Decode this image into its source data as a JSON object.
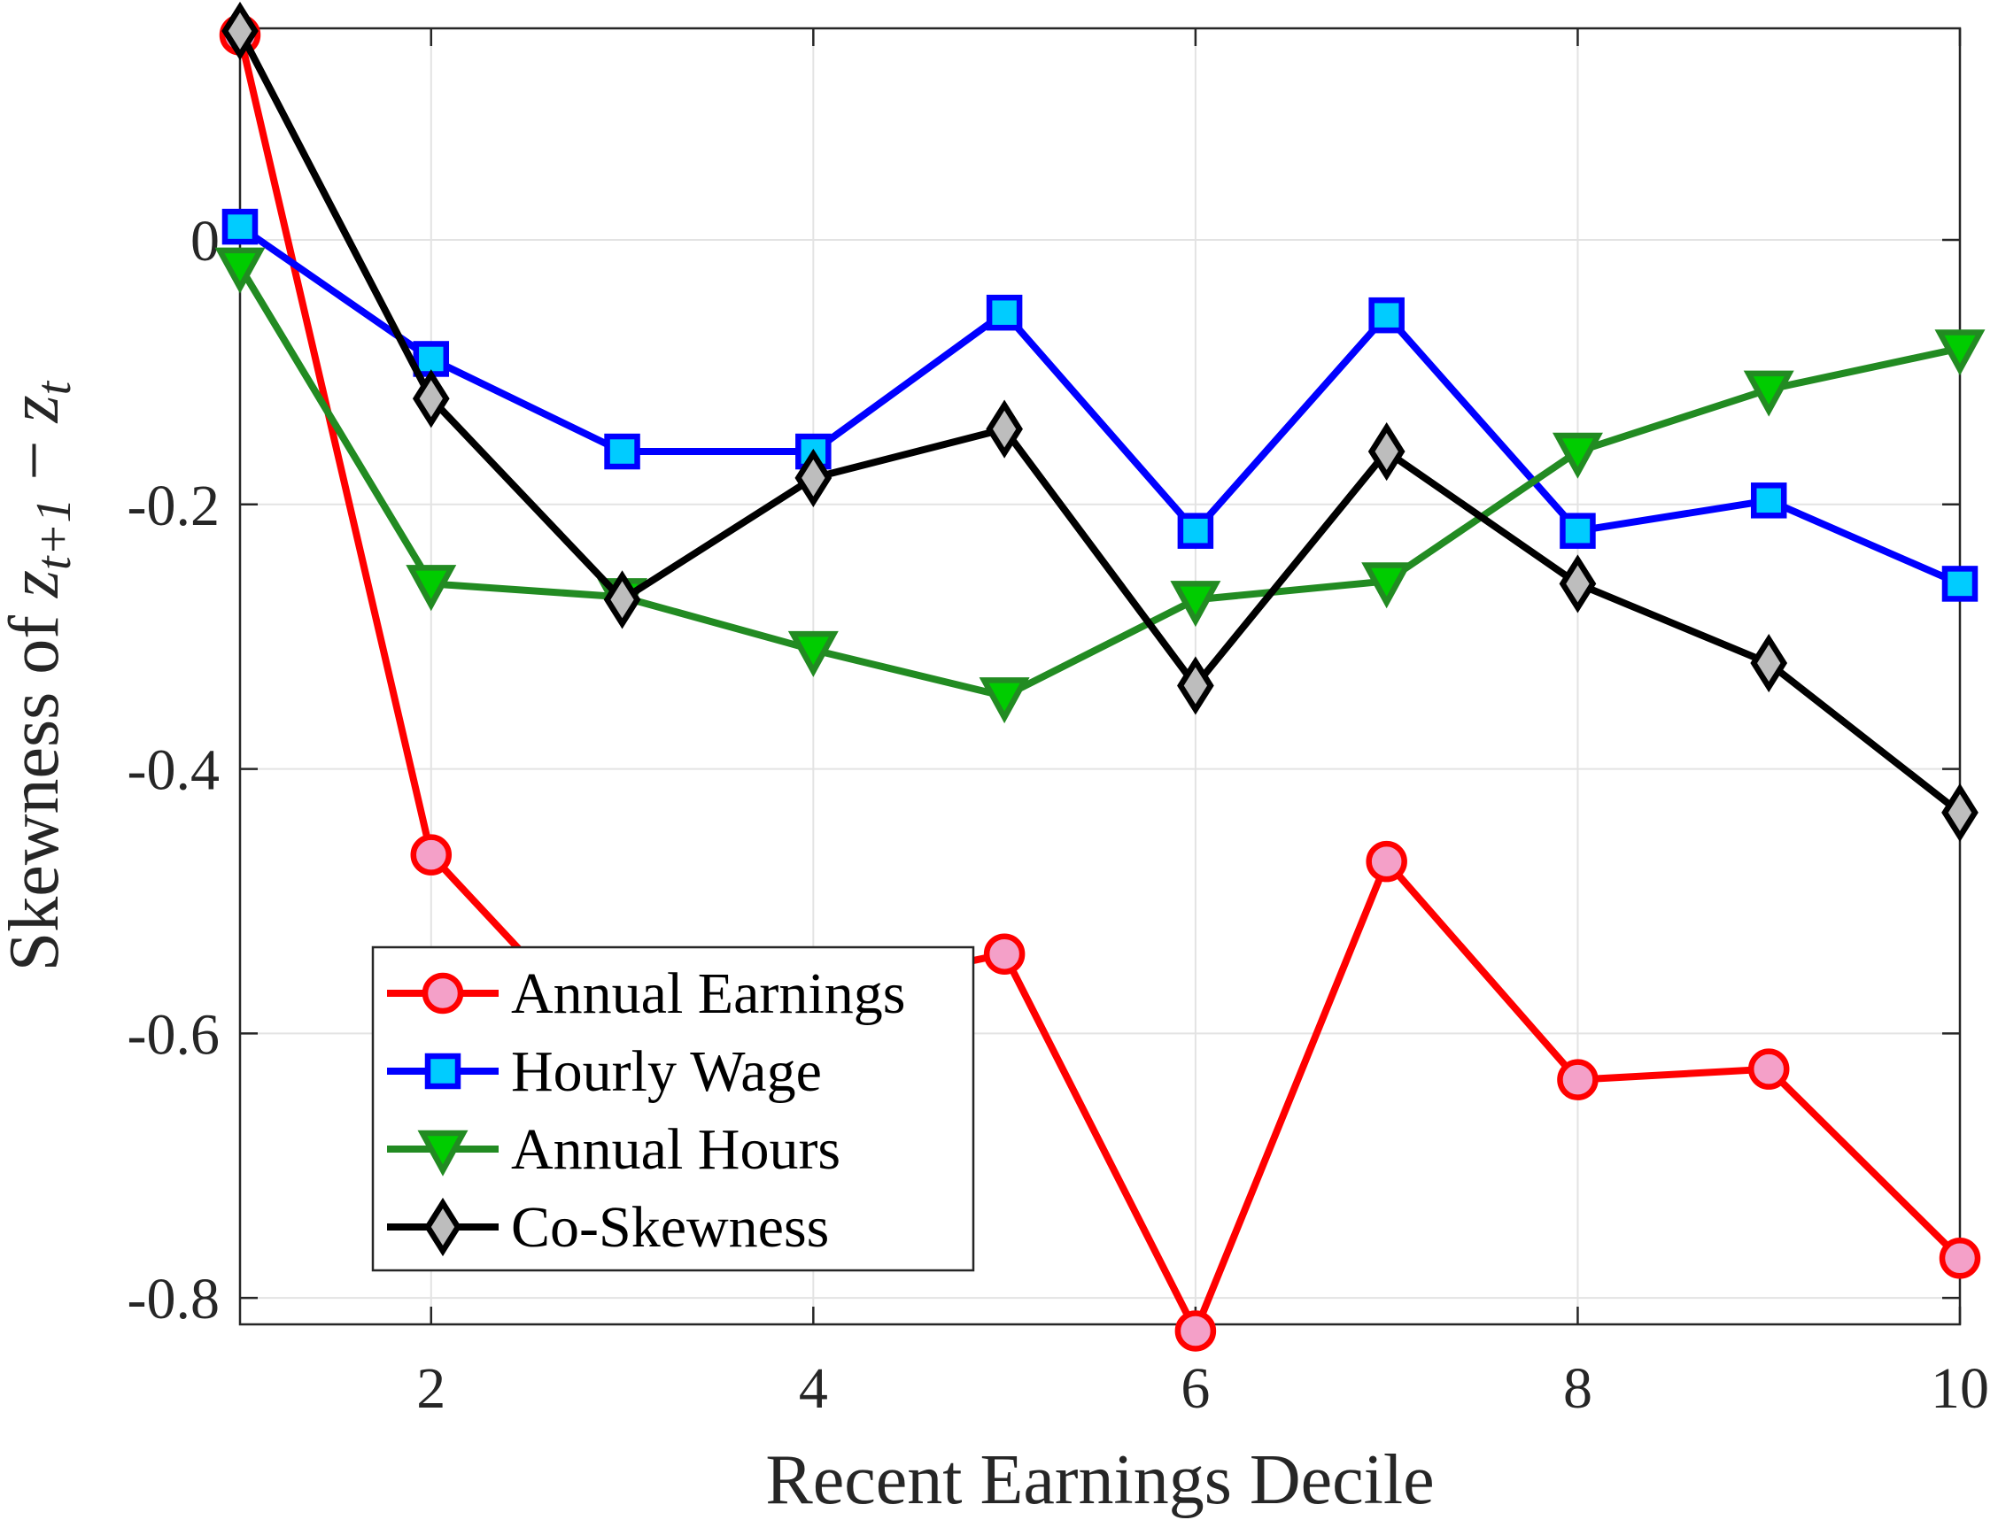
{
  "chart_data": {
    "type": "line",
    "xlabel": "Recent Earnings Decile",
    "ylabel": {
      "prefix": "Skewness of ",
      "expr_a": "z",
      "expr_a_sub": "t+1",
      "expr_op": " − ",
      "expr_b": "z",
      "expr_b_sub": "t"
    },
    "xlim": [
      1,
      10
    ],
    "ylim": [
      -0.82,
      0.16
    ],
    "xticks": [
      2,
      4,
      6,
      8,
      10
    ],
    "xtick_labels": [
      "2",
      "4",
      "6",
      "8",
      "10"
    ],
    "yticks": [
      -0.8,
      -0.6,
      -0.4,
      -0.2,
      0
    ],
    "ytick_labels": [
      "-0.8",
      "-0.6",
      "-0.4",
      "-0.2",
      "0"
    ],
    "grid": true,
    "legend_position": "bottom-left",
    "x": [
      1,
      2,
      3,
      4,
      5,
      6,
      7,
      8,
      9,
      10
    ],
    "series": [
      {
        "name": "Annual Earnings",
        "marker": "circle",
        "color": "#ff0000",
        "marker_fill": "#f4a0c8",
        "values": [
          0.155,
          -0.465,
          -0.62,
          -0.57,
          -0.54,
          -0.825,
          -0.47,
          -0.635,
          -0.627,
          -0.77
        ]
      },
      {
        "name": "Hourly Wage",
        "marker": "square",
        "color": "#0000ff",
        "marker_fill": "#00ccff",
        "values": [
          0.01,
          -0.09,
          -0.16,
          -0.16,
          -0.055,
          -0.22,
          -0.057,
          -0.22,
          -0.197,
          -0.26
        ]
      },
      {
        "name": "Annual Hours",
        "marker": "triangle-down",
        "color": "#228b22",
        "marker_fill": "#00cc00",
        "values": [
          -0.02,
          -0.26,
          -0.27,
          -0.31,
          -0.345,
          -0.272,
          -0.258,
          -0.16,
          -0.113,
          -0.082
        ]
      },
      {
        "name": "Co-Skewness",
        "marker": "diamond",
        "color": "#000000",
        "marker_fill": "#bdbdbd",
        "values": [
          0.158,
          -0.12,
          -0.272,
          -0.18,
          -0.143,
          -0.337,
          -0.16,
          -0.26,
          -0.32,
          -0.433
        ]
      }
    ]
  }
}
